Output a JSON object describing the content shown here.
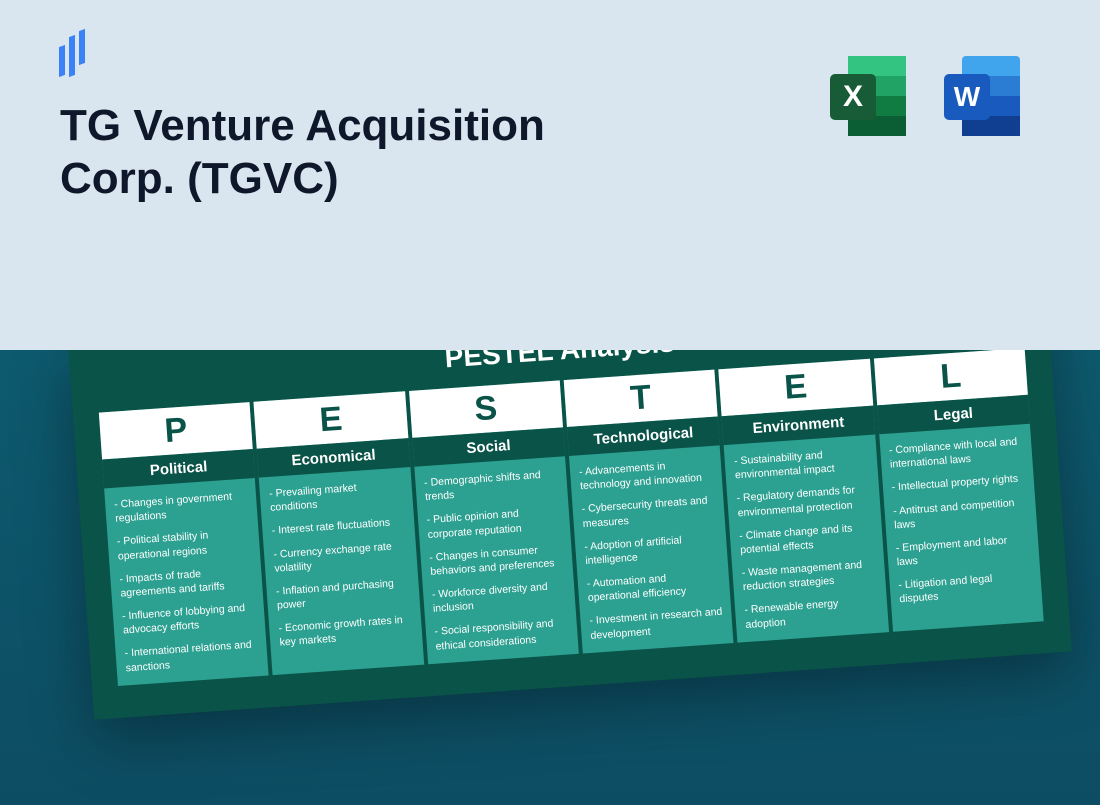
{
  "header": {
    "title": "TG Venture Acquisition Corp. (TGVC)",
    "background_color": "#d9e6ef",
    "title_color": "#0f172a",
    "title_fontsize": 44,
    "logo_color": "#3b82f6"
  },
  "apps": {
    "excel": {
      "letter": "X",
      "back_color": "#107c41",
      "mid_color": "#21a366",
      "light_color": "#33c481",
      "badge_color": "#185c37"
    },
    "word": {
      "letter": "W",
      "back_color": "#2b579a",
      "mid_color": "#41a5ee",
      "light_color": "#69b7f0",
      "badge_color": "#185abd"
    }
  },
  "lower_bg_top": "#0d5a6e",
  "lower_bg_bottom": "#0d4d63",
  "card": {
    "title": "PESTEL Analysis",
    "bg_color": "#0a5348",
    "col_bg_color": "#2da191",
    "letter_row_bg": "#ffffff",
    "letter_color": "#0a5348",
    "category_bg": "#0a5348",
    "text_color": "#ffffff",
    "title_fontsize": 28,
    "letter_fontsize": 34,
    "category_fontsize": 15,
    "item_fontsize": 10.5,
    "rotation_deg": -4,
    "columns": [
      {
        "letter": "P",
        "category": "Political",
        "items": [
          "Changes in government regulations",
          "Political stability in operational regions",
          "Impacts of trade agreements and tariffs",
          "Influence of lobbying and advocacy efforts",
          "International relations and sanctions"
        ]
      },
      {
        "letter": "E",
        "category": "Economical",
        "items": [
          "Prevailing market conditions",
          "Interest rate fluctuations",
          "Currency exchange rate volatility",
          "Inflation and purchasing power",
          "Economic growth rates in key markets"
        ]
      },
      {
        "letter": "S",
        "category": "Social",
        "items": [
          "Demographic shifts and trends",
          "Public opinion and corporate reputation",
          "Changes in consumer behaviors and preferences",
          "Workforce diversity and inclusion",
          "Social responsibility and ethical considerations"
        ]
      },
      {
        "letter": "T",
        "category": "Technological",
        "items": [
          "Advancements in technology and innovation",
          "Cybersecurity threats and measures",
          "Adoption of artificial intelligence",
          "Automation and operational efficiency",
          "Investment in research and development"
        ]
      },
      {
        "letter": "E",
        "category": "Environment",
        "items": [
          "Sustainability and environmental impact",
          "Regulatory demands for environmental protection",
          "Climate change and its potential effects",
          "Waste management and reduction strategies",
          "Renewable energy adoption"
        ]
      },
      {
        "letter": "L",
        "category": "Legal",
        "items": [
          "Compliance with local and international laws",
          "Intellectual property rights",
          "Antitrust and competition laws",
          "Employment and labor laws",
          "Litigation and legal disputes"
        ]
      }
    ]
  }
}
